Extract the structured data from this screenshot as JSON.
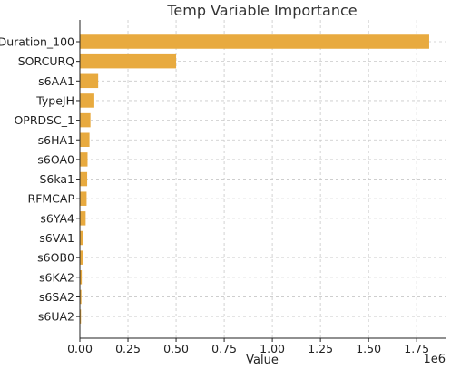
{
  "chart_data": {
    "type": "bar",
    "orientation": "horizontal",
    "title": "Temp Variable Importance",
    "xlabel": "Value",
    "ylabel": "",
    "x_scale_label": "1e6",
    "categories": [
      "Duration_100",
      "SORCURQ",
      "s6AA1",
      "TypeJH",
      "OPRDSC_1",
      "s6HA1",
      "s6OA0",
      "S6ka1",
      "RFMCAP",
      "s6YA4",
      "s6VA1",
      "s6OB0",
      "s6KA2",
      "s6SA2",
      "s6UA2"
    ],
    "values": [
      1815000,
      500000,
      95000,
      75000,
      55000,
      50000,
      40000,
      38000,
      35000,
      30000,
      18000,
      15000,
      10000,
      8000,
      6000
    ],
    "xlim": [
      0,
      1900000
    ],
    "x_ticks": [
      0,
      250000,
      500000,
      750000,
      1000000,
      1250000,
      1500000,
      1750000
    ],
    "x_tick_labels": [
      "0.00",
      "0.25",
      "0.50",
      "0.75",
      "1.00",
      "1.25",
      "1.50",
      "1.75"
    ],
    "grid": true,
    "bar_color": "#E8AA3F"
  }
}
